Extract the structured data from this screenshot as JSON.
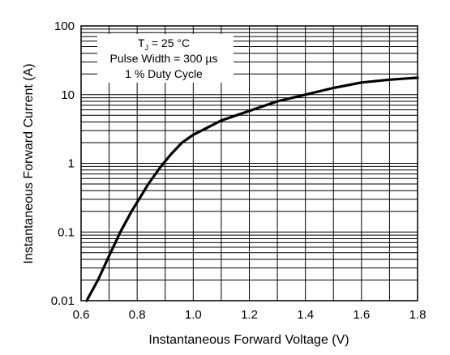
{
  "chart_data": {
    "type": "line",
    "xlabel": "Instantaneous Forward Voltage (V)",
    "ylabel": "Instantaneous Forward Current (A)",
    "xlim": [
      0.6,
      1.8
    ],
    "ylim": [
      0.01,
      100
    ],
    "yscale": "log",
    "x_ticks": [
      "0.6",
      "0.8",
      "1.0",
      "1.2",
      "1.4",
      "1.6",
      "1.8"
    ],
    "y_ticks": [
      "0.01",
      "0.1",
      "1",
      "10",
      "100"
    ],
    "grid": true,
    "annotation": {
      "line1_main": "T",
      "line1_sub": "J",
      "line1_rest": " = 25 °C",
      "line2": "Pulse Width = 300 µs",
      "line3": "1 % Duty Cycle"
    },
    "series": [
      {
        "x": [
          0.62,
          0.66,
          0.7,
          0.74,
          0.78,
          0.84,
          0.88,
          0.92,
          0.96,
          1.0,
          1.05,
          1.1,
          1.2,
          1.3,
          1.4,
          1.5,
          1.6,
          1.7,
          1.8
        ],
        "y": [
          0.01,
          0.02,
          0.045,
          0.1,
          0.2,
          0.5,
          0.85,
          1.35,
          2.0,
          2.6,
          3.3,
          4.2,
          5.8,
          8.0,
          10.0,
          12.5,
          15.0,
          16.5,
          17.6
        ]
      }
    ]
  }
}
